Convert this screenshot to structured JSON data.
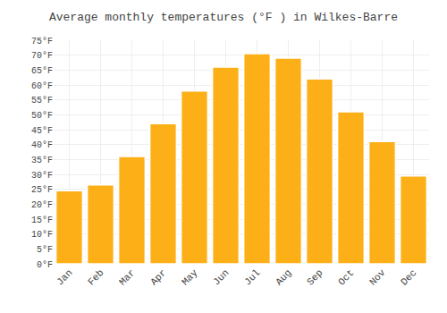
{
  "chart_data": {
    "type": "bar",
    "title": "Average monthly temperatures (°F ) in Wilkes-Barre",
    "categories": [
      "Jan",
      "Feb",
      "Mar",
      "Apr",
      "May",
      "Jun",
      "Jul",
      "Aug",
      "Sep",
      "Oct",
      "Nov",
      "Dec"
    ],
    "values": [
      24.5,
      26.5,
      36,
      47,
      58,
      66,
      70.5,
      69,
      62,
      51,
      41,
      29.5
    ],
    "color": "#FDAF17",
    "ylim": [
      0,
      75
    ],
    "yticks": [
      {
        "value": 0,
        "label": "0°F"
      },
      {
        "value": 5,
        "label": "5°F"
      },
      {
        "value": 10,
        "label": "10°F"
      },
      {
        "value": 15,
        "label": "15°F"
      },
      {
        "value": 20,
        "label": "20°F"
      },
      {
        "value": 25,
        "label": "25°F"
      },
      {
        "value": 30,
        "label": "30°F"
      },
      {
        "value": 35,
        "label": "35°F"
      },
      {
        "value": 40,
        "label": "40°F"
      },
      {
        "value": 45,
        "label": "45°F"
      },
      {
        "value": 50,
        "label": "50°F"
      },
      {
        "value": 55,
        "label": "55°F"
      },
      {
        "value": 60,
        "label": "60°F"
      },
      {
        "value": 65,
        "label": "65°F"
      },
      {
        "value": 70,
        "label": "70°F"
      },
      {
        "value": 75,
        "label": "75°F"
      }
    ],
    "grid": true
  }
}
